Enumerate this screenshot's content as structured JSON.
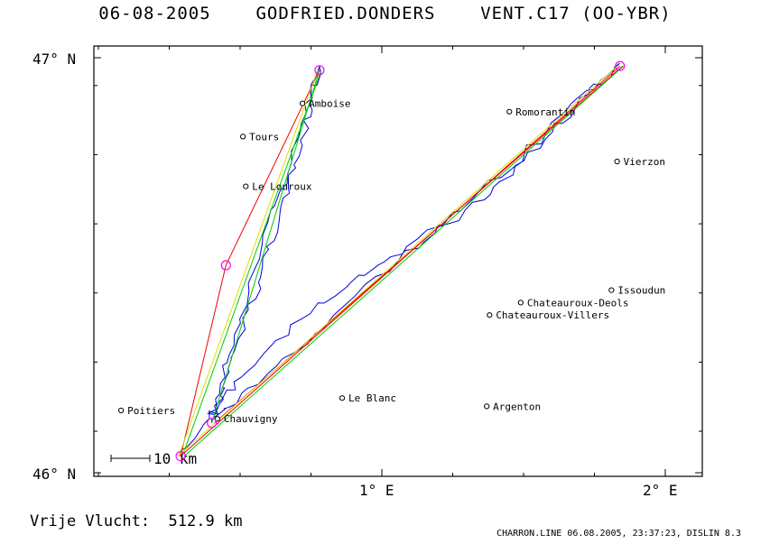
{
  "header": {
    "title": "06-08-2005    GODFRIED.DONDERS    VENT.C17 (OO-YBR)"
  },
  "footer": {
    "distance_label": "Vrije Vlucht:",
    "distance_value": "512.9 km",
    "credits": "CHARRON.LINE 06.08.2005, 23:37:23, DISLIN 8.3"
  },
  "map": {
    "y_labels": [
      "47° N",
      "46° N"
    ],
    "x_labels": [
      "1° E",
      "2° E"
    ],
    "scale_label": "10 km",
    "towns": [
      {
        "name": "Amboise",
        "lon": 0.72,
        "lat": 46.89
      },
      {
        "name": "Tours",
        "lon": 0.51,
        "lat": 46.81
      },
      {
        "name": "Le Louroux",
        "lon": 0.52,
        "lat": 46.69
      },
      {
        "name": "Romorantin",
        "lon": 1.45,
        "lat": 46.87
      },
      {
        "name": "Vierzon",
        "lon": 1.83,
        "lat": 46.75
      },
      {
        "name": "Issoudun",
        "lon": 1.81,
        "lat": 46.44
      },
      {
        "name": "Chateauroux-Deols",
        "lon": 1.49,
        "lat": 46.41
      },
      {
        "name": "Chateauroux-Villers",
        "lon": 1.38,
        "lat": 46.38
      },
      {
        "name": "Le Blanc",
        "lon": 0.86,
        "lat": 46.18
      },
      {
        "name": "Argenton",
        "lon": 1.37,
        "lat": 46.16
      },
      {
        "name": "Poitiers",
        "lon": 0.08,
        "lat": 46.15
      },
      {
        "name": "Chauvigny",
        "lon": 0.42,
        "lat": 46.13
      }
    ],
    "turnpoints": [
      {
        "lon": 0.29,
        "lat": 46.04
      },
      {
        "lon": 0.78,
        "lat": 46.97
      },
      {
        "lon": 0.45,
        "lat": 46.5
      },
      {
        "lon": 1.84,
        "lat": 46.98
      },
      {
        "lon": 0.4,
        "lat": 46.12
      }
    ],
    "colors": {
      "track": "#0000dd",
      "route_red": "#ee0000",
      "route_green": "#00cc00",
      "route_yellow": "#dddd00",
      "turnpoint": "#ff00ff"
    }
  }
}
